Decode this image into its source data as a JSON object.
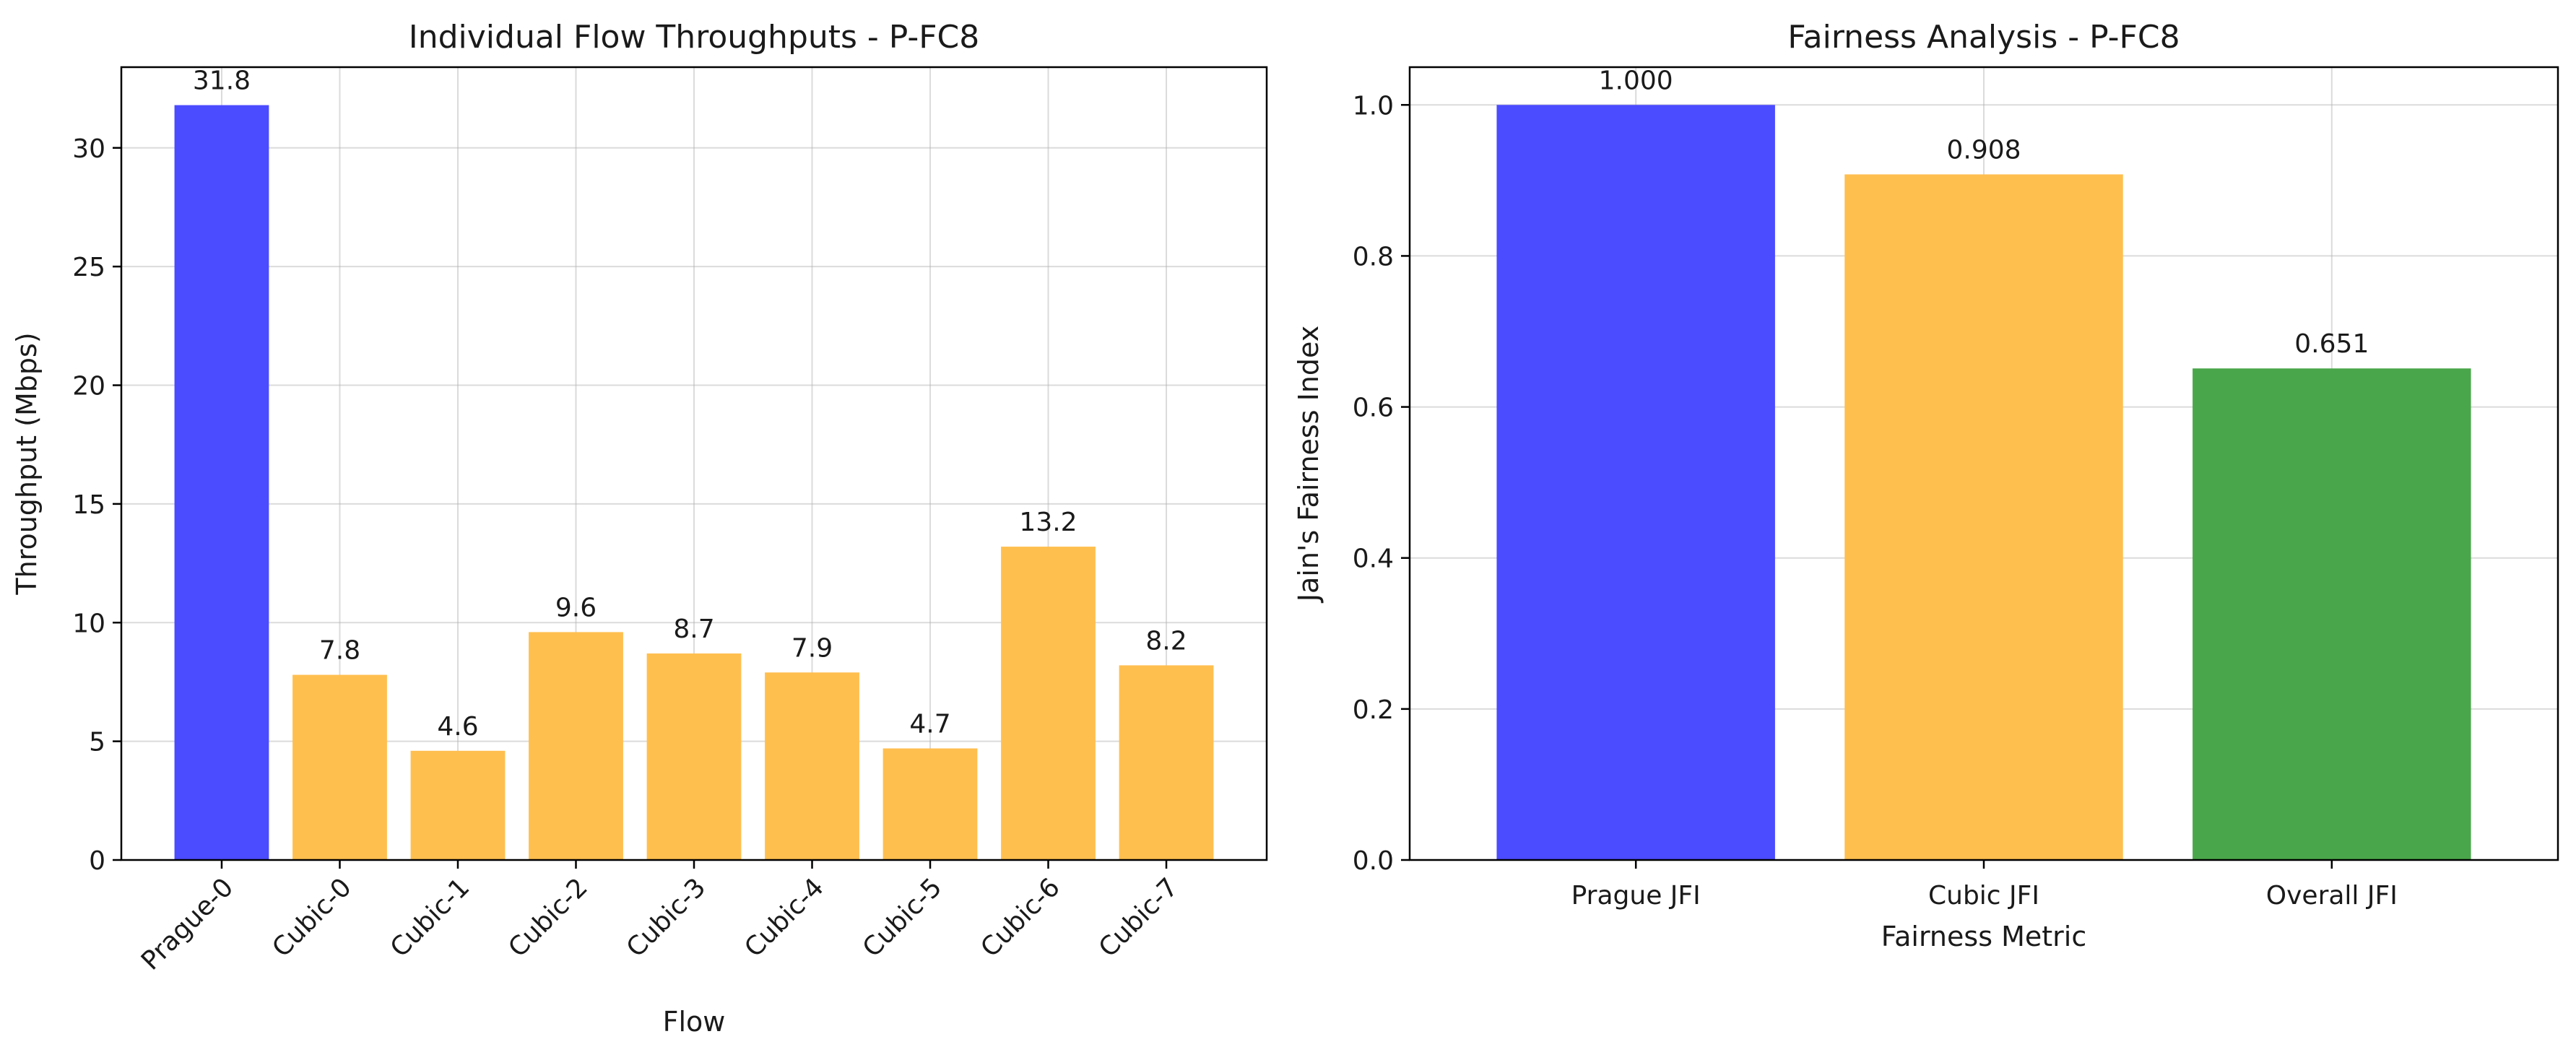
{
  "chart_data": [
    {
      "type": "bar",
      "title": "Individual Flow Throughputs - P-FC8",
      "xlabel": "Flow",
      "ylabel": "Throughput (Mbps)",
      "ylim": [
        0,
        33.4
      ],
      "yticks": [
        0,
        5,
        10,
        15,
        20,
        25,
        30
      ],
      "categories": [
        "Prague-0",
        "Cubic-0",
        "Cubic-1",
        "Cubic-2",
        "Cubic-3",
        "Cubic-4",
        "Cubic-5",
        "Cubic-6",
        "Cubic-7"
      ],
      "values": [
        31.8,
        7.8,
        4.6,
        9.6,
        8.7,
        7.9,
        4.7,
        13.2,
        8.2
      ],
      "value_labels": [
        "31.8",
        "7.8",
        "4.6",
        "9.6",
        "8.7",
        "7.9",
        "4.7",
        "13.2",
        "8.2"
      ],
      "colors": [
        "#4b4bff",
        "#ffbf4f",
        "#ffbf4f",
        "#ffbf4f",
        "#ffbf4f",
        "#ffbf4f",
        "#ffbf4f",
        "#ffbf4f",
        "#ffbf4f"
      ],
      "grid": true,
      "xtick_rotation": 45
    },
    {
      "type": "bar",
      "title": "Fairness Analysis - P-FC8",
      "xlabel": "Fairness Metric",
      "ylabel": "Jain's Fairness Index",
      "ylim": [
        0,
        1.05
      ],
      "yticks": [
        "0.0",
        "0.2",
        "0.4",
        "0.6",
        "0.8",
        "1.0"
      ],
      "categories": [
        "Prague JFI",
        "Cubic JFI",
        "Overall JFI"
      ],
      "values": [
        1.0,
        0.908,
        0.651
      ],
      "value_labels": [
        "1.000",
        "0.908",
        "0.651"
      ],
      "colors": [
        "#4b4bff",
        "#ffbf4f",
        "#4aa64a"
      ],
      "grid": true,
      "xtick_rotation": 0
    }
  ]
}
